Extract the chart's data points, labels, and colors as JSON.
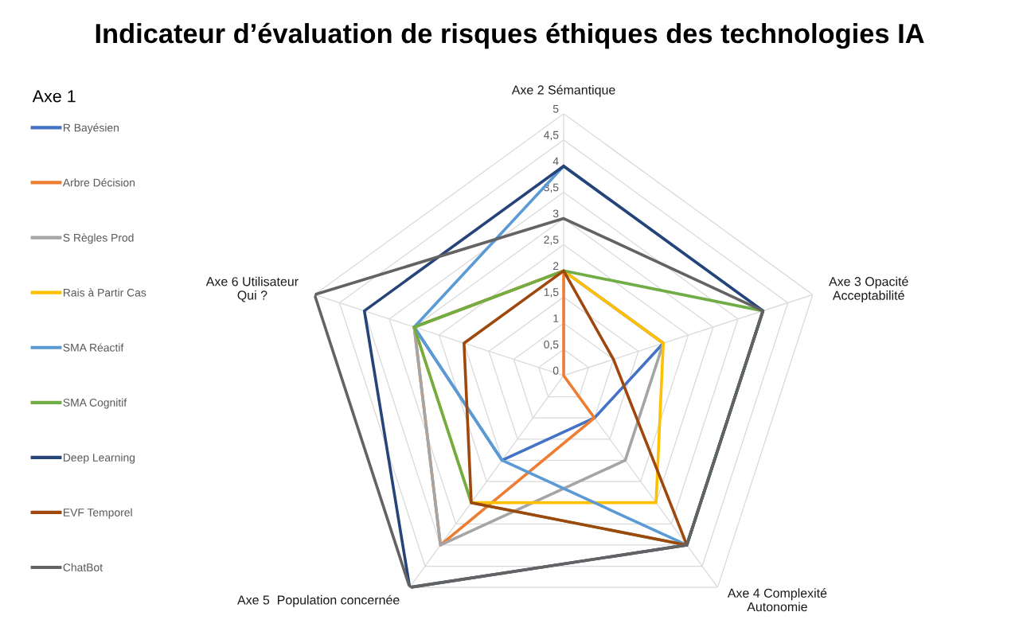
{
  "chart_data": {
    "type": "radar",
    "title": "Indicateur d’évaluation de risques éthiques des technologies IA",
    "categories": [
      "Axe 2 Sémantique",
      "Axe 3 Opacité\nAcceptabilité",
      "Axe 4 Complexité\nAutonomie",
      "Axe 5  Population concernée",
      "Axe 6 Utilisateur\nQui ?"
    ],
    "legend_title": "Axe 1",
    "series": [
      {
        "name": "R Bayésien",
        "color": "#4472c4",
        "values": [
          2,
          2,
          1,
          2,
          3
        ]
      },
      {
        "name": "Arbre Décision",
        "color": "#ed7d31",
        "values": [
          2,
          0,
          1,
          4,
          3
        ]
      },
      {
        "name": "S Règles Prod",
        "color": "#a5a5a5",
        "values": [
          2,
          2,
          2,
          4,
          3
        ]
      },
      {
        "name": "Rais à Partir Cas",
        "color": "#ffc000",
        "values": [
          2,
          2,
          3,
          3,
          3
        ]
      },
      {
        "name": "SMA Réactif",
        "color": "#5b9bd5",
        "values": [
          4,
          4,
          4,
          2,
          3
        ]
      },
      {
        "name": "SMA Cognitif",
        "color": "#70ad47",
        "values": [
          2,
          4,
          4,
          3,
          3
        ]
      },
      {
        "name": "Deep Learning",
        "color": "#264478",
        "values": [
          4,
          4,
          4,
          5,
          4
        ]
      },
      {
        "name": "EVF Temporel",
        "color": "#9e480e",
        "values": [
          2,
          1,
          4,
          3,
          2
        ]
      },
      {
        "name": "ChatBot",
        "color": "#636363",
        "values": [
          3,
          4,
          4,
          5,
          5
        ]
      }
    ],
    "ylim": [
      0,
      5
    ],
    "yticks": [
      0,
      {
        "value": 0.5,
        "label": "0,5"
      },
      1,
      {
        "value": 1.5,
        "label": "1,5"
      },
      2,
      {
        "value": 2.5,
        "label": "2,5"
      },
      3,
      {
        "value": 3.5,
        "label": "3,5"
      },
      4,
      {
        "value": 4.5,
        "label": "4,5"
      },
      5
    ],
    "grid": true,
    "legend": "left"
  }
}
